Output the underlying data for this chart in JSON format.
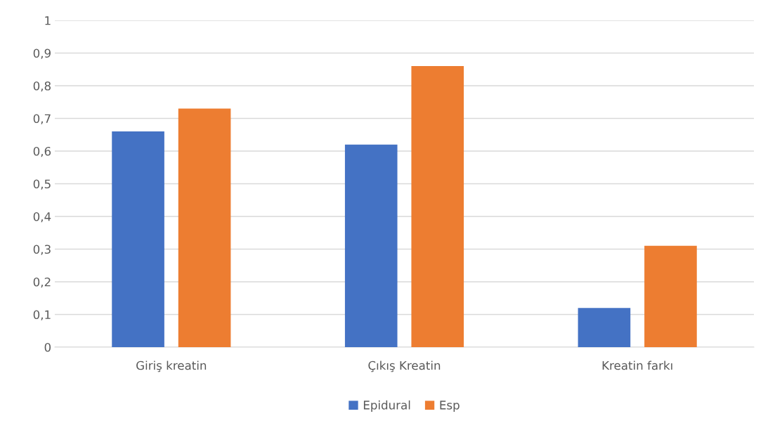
{
  "chart_data": {
    "type": "bar",
    "categories": [
      "Giriş kreatin",
      "Çıkış Kreatin",
      "Kreatin farkı"
    ],
    "series": [
      {
        "name": "Epidural",
        "color": "#4472c4",
        "values": [
          0.66,
          0.62,
          0.12
        ]
      },
      {
        "name": "Esp",
        "color": "#ed7d31",
        "values": [
          0.73,
          0.86,
          0.31
        ]
      }
    ],
    "ylim": [
      0,
      1
    ],
    "yticks": [
      0,
      {
        "value": 0.1,
        "label": "0,1"
      },
      {
        "value": 0.2,
        "label": "0,2"
      },
      {
        "value": 0.3,
        "label": "0,3"
      },
      {
        "value": 0.4,
        "label": "0,4"
      },
      {
        "value": 0.5,
        "label": "0,5"
      },
      {
        "value": 0.6,
        "label": "0,6"
      },
      {
        "value": 0.7,
        "label": "0,7"
      },
      {
        "value": 0.8,
        "label": "0,8"
      },
      {
        "value": 0.9,
        "label": "0,9"
      },
      1
    ],
    "grid": "y",
    "legend": "bottom"
  }
}
